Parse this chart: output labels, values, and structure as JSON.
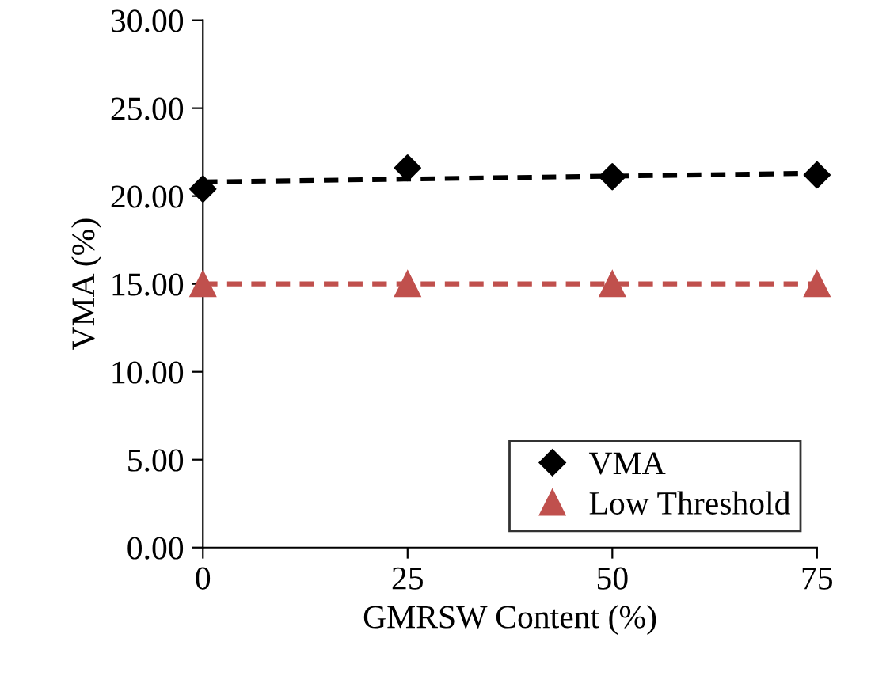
{
  "chart_data": {
    "type": "scatter",
    "xlabel": "GMRSW Content (%)",
    "ylabel": "VMA (%)",
    "xlim": [
      0,
      75
    ],
    "xticks": [
      0,
      25,
      50,
      75
    ],
    "ylim": [
      0,
      30
    ],
    "yticks": [
      {
        "value": 0,
        "label": "0.00"
      },
      {
        "value": 5,
        "label": "5.00"
      },
      {
        "value": 10,
        "label": "10.00"
      },
      {
        "value": 15,
        "label": "15.00"
      },
      {
        "value": 20,
        "label": "20.00"
      },
      {
        "value": 25,
        "label": "25.00"
      },
      {
        "value": 30,
        "label": "30.00"
      }
    ],
    "grid": false,
    "legend": "bottom right",
    "series": [
      {
        "name": "VMA",
        "marker": "diamond",
        "color": "#000000",
        "x": [
          0,
          25,
          50,
          75
        ],
        "values": [
          20.4,
          21.6,
          21.1,
          21.2
        ]
      },
      {
        "name": "Low Threshold",
        "type": "line",
        "marker": "triangle",
        "line_style": "dashed",
        "color": "#c0504d",
        "x": [
          0,
          25,
          50,
          75
        ],
        "values": [
          15,
          15,
          15,
          15
        ]
      },
      {
        "type": "line",
        "marker": "none",
        "line_style": "dashed",
        "color": "#000000",
        "x": [
          0,
          75
        ],
        "values": [
          20.8,
          21.3
        ]
      }
    ]
  }
}
